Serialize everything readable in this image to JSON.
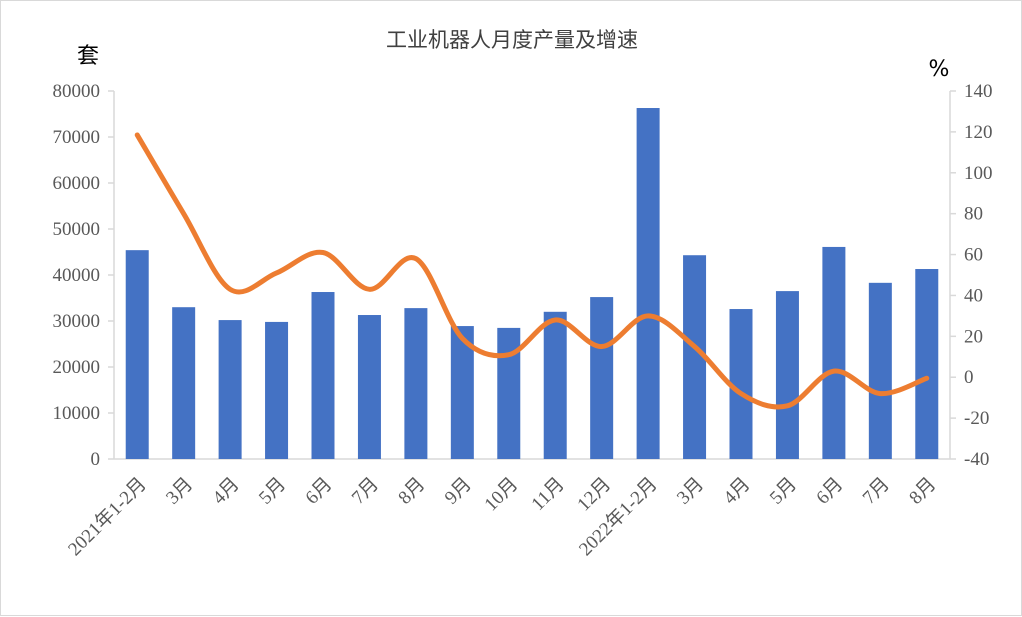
{
  "chart_data": {
    "type": "bar+line",
    "title": "工业机器人月度产量及增速",
    "ylabel_left": "套",
    "ylabel_right": "%",
    "categories": [
      "2021年1-2月",
      "3月",
      "4月",
      "5月",
      "6月",
      "7月",
      "8月",
      "9月",
      "10月",
      "11月",
      "12月",
      "2022年1-2月",
      "3月",
      "4月",
      "5月",
      "6月",
      "7月",
      "8月"
    ],
    "series": [
      {
        "kind": "bar",
        "axis": "left",
        "color": "#4472C4",
        "values": [
          45400,
          33000,
          30200,
          29800,
          36300,
          31300,
          32800,
          28900,
          28500,
          32000,
          35200,
          76300,
          44300,
          32600,
          36500,
          46100,
          38300,
          41300
        ]
      },
      {
        "kind": "line",
        "axis": "right",
        "smooth": true,
        "color": "#ED7D31",
        "values": [
          118.5,
          80,
          43,
          51,
          61,
          43,
          58,
          19,
          11,
          28,
          15,
          30,
          15,
          -8,
          -14,
          3,
          -8,
          -0.5
        ]
      }
    ],
    "ylim_left": [
      0,
      80000
    ],
    "ylim_right": [
      -40,
      140
    ],
    "yticks_left": [
      "0",
      "10000",
      "20000",
      "30000",
      "40000",
      "50000",
      "60000",
      "70000",
      "80000"
    ],
    "yticks_right": [
      "-40",
      "-20",
      "0",
      "20",
      "40",
      "60",
      "80",
      "100",
      "120",
      "140"
    ],
    "grid": false,
    "legend": "none"
  }
}
